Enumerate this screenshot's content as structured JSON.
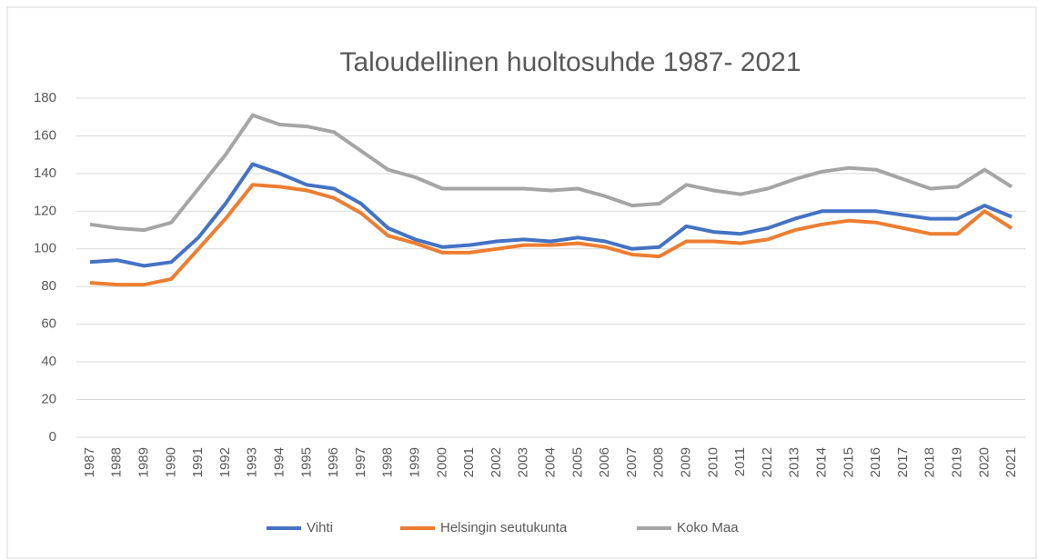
{
  "chart_data": {
    "type": "line",
    "title": "Taloudellinen huoltosuhde 1987- 2021",
    "categories": [
      "1987",
      "1988",
      "1989",
      "1990",
      "1991",
      "1992",
      "1993",
      "1994",
      "1995",
      "1996",
      "1997",
      "1998",
      "1999",
      "2000",
      "2001",
      "2002",
      "2003",
      "2004",
      "2005",
      "2006",
      "2007",
      "2008",
      "2009",
      "2010",
      "2011",
      "2012",
      "2013",
      "2014",
      "2015",
      "2016",
      "2017",
      "2018",
      "2019",
      "2020",
      "2021"
    ],
    "series": [
      {
        "name": "Vihti",
        "color": "#4472c4",
        "values": [
          93,
          94,
          91,
          93,
          106,
          124,
          145,
          140,
          134,
          132,
          124,
          111,
          105,
          101,
          102,
          104,
          105,
          104,
          106,
          104,
          100,
          101,
          112,
          109,
          108,
          111,
          116,
          120,
          120,
          120,
          118,
          116,
          116,
          123,
          117
        ]
      },
      {
        "name": "Helsingin seutukunta",
        "color": "#ed7d31",
        "values": [
          82,
          81,
          81,
          84,
          100,
          116,
          134,
          133,
          131,
          127,
          119,
          107,
          103,
          98,
          98,
          100,
          102,
          102,
          103,
          101,
          97,
          96,
          104,
          104,
          103,
          105,
          110,
          113,
          115,
          114,
          111,
          108,
          108,
          120,
          111
        ]
      },
      {
        "name": "Koko Maa",
        "color": "#a5a5a5",
        "values": [
          113,
          111,
          110,
          114,
          132,
          150,
          171,
          166,
          165,
          162,
          152,
          142,
          138,
          132,
          132,
          132,
          132,
          131,
          132,
          128,
          123,
          124,
          134,
          131,
          129,
          132,
          137,
          141,
          143,
          142,
          137,
          132,
          133,
          142,
          133
        ]
      }
    ],
    "ylim": [
      0,
      180
    ],
    "yticks": [
      0,
      20,
      40,
      60,
      80,
      100,
      120,
      140,
      160,
      180
    ],
    "grid": true,
    "legend": "bottom"
  }
}
